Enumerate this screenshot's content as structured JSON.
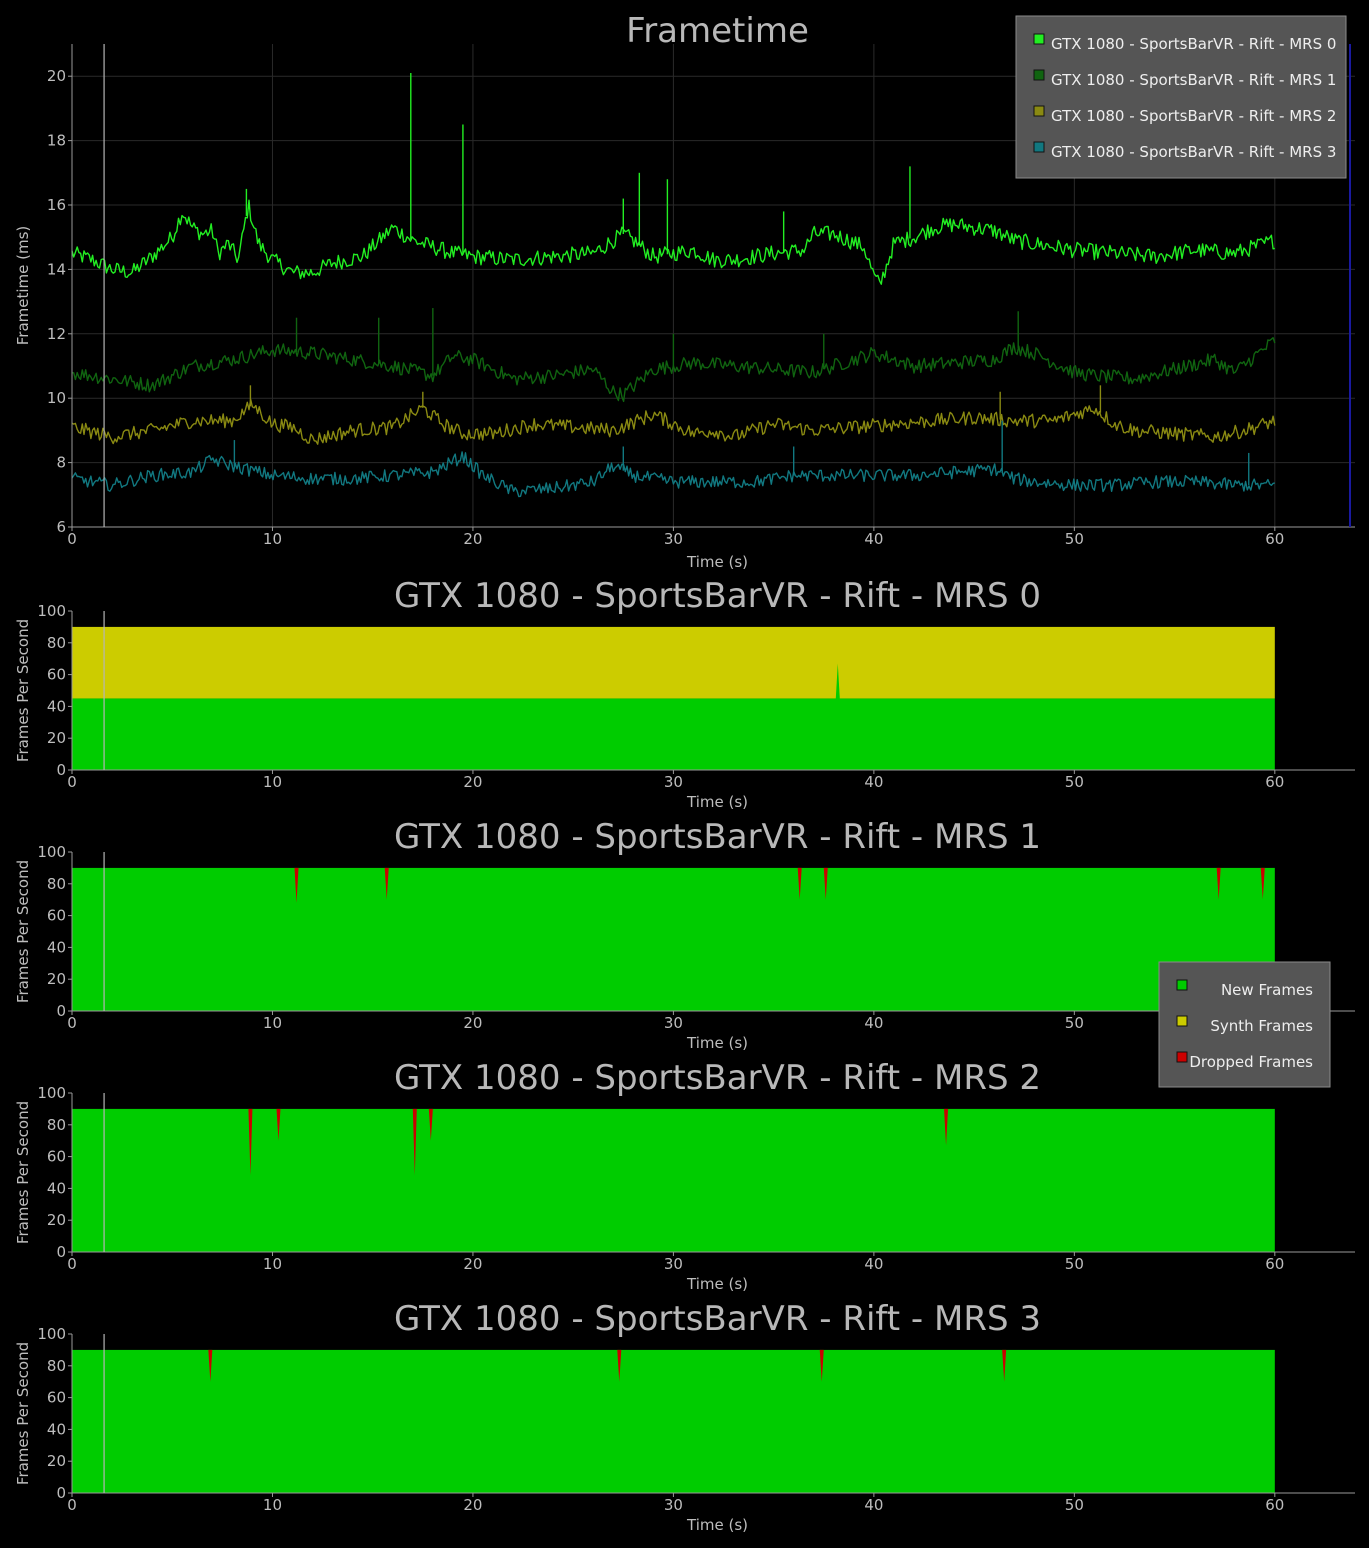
{
  "chart_data": [
    {
      "type": "line",
      "title": "Frametime",
      "xlabel": "Time (s)",
      "ylabel": "Frametime (ms)",
      "xlim": [
        0,
        64
      ],
      "ylim": [
        6,
        21
      ],
      "xticks": [
        0,
        10,
        20,
        30,
        40,
        50,
        60
      ],
      "yticks": [
        6,
        8,
        10,
        12,
        14,
        16,
        18,
        20
      ],
      "grid": true,
      "legend_position": "top-right",
      "cursor_x": 1.6,
      "series": [
        {
          "name": "GTX 1080 - SportsBarVR - Rift - MRS 0",
          "color": "#22ee22",
          "noise": 0.25,
          "x": [
            0,
            1,
            2,
            3,
            4,
            5,
            5.5,
            6,
            6.5,
            7,
            7.3,
            7.8,
            8.3,
            8.8,
            9.3,
            10,
            11,
            12,
            13,
            14.5,
            15.5,
            16,
            17,
            18,
            19,
            20,
            22,
            24,
            26,
            27.5,
            28,
            29,
            30,
            31,
            32,
            33,
            35,
            36.5,
            37,
            38,
            39.5,
            40,
            40.3,
            41,
            42,
            43,
            44,
            46,
            47,
            48,
            50,
            52,
            54,
            56,
            58,
            60
          ],
          "y": [
            14.5,
            14.3,
            14,
            13.9,
            14.4,
            15,
            15.8,
            15.3,
            15.1,
            15.2,
            14.5,
            14.8,
            14.3,
            16,
            14.8,
            14.3,
            13.9,
            13.9,
            14.2,
            14.4,
            15,
            15.3,
            14.9,
            14.7,
            14.5,
            14.4,
            14.3,
            14.4,
            14.5,
            15.1,
            14.9,
            14.4,
            14.5,
            14.6,
            14.3,
            14.3,
            14.5,
            14.6,
            15.1,
            15.1,
            14.7,
            13.8,
            13.5,
            14.8,
            15,
            15.3,
            15.4,
            15.2,
            14.9,
            14.8,
            14.6,
            14.5,
            14.4,
            14.6,
            14.5,
            14.9
          ],
          "spikes": [
            [
              16.9,
              20.1
            ],
            [
              19.5,
              18.5
            ],
            [
              8.7,
              16.5
            ],
            [
              28.3,
              17
            ],
            [
              29.7,
              16.8
            ],
            [
              41.8,
              17.2
            ],
            [
              27.5,
              16.2
            ],
            [
              35.5,
              15.8
            ]
          ]
        },
        {
          "name": "GTX 1080 - SportsBarVR - Rift - MRS 1",
          "color": "#106410",
          "noise": 0.22,
          "x": [
            0,
            2,
            4,
            6,
            8,
            10,
            12,
            14,
            16,
            18,
            19,
            20,
            22,
            24,
            26,
            27,
            27.5,
            29,
            31,
            33,
            35,
            37,
            39,
            40,
            42,
            44,
            46,
            47,
            48,
            50,
            51,
            53,
            55,
            57,
            58,
            59,
            60
          ],
          "y": [
            10.8,
            10.6,
            10.4,
            11,
            11.2,
            11.5,
            11.4,
            11.2,
            11,
            10.7,
            11.3,
            11.2,
            10.6,
            10.7,
            10.9,
            10.2,
            10.1,
            10.9,
            11.1,
            11,
            10.9,
            10.8,
            11.2,
            11.4,
            11,
            11.1,
            11.2,
            11.6,
            11.4,
            10.8,
            10.7,
            10.6,
            10.9,
            11.2,
            10.8,
            11.3,
            11.8
          ],
          "spikes": [
            [
              11.2,
              12.5
            ],
            [
              15.3,
              12.5
            ],
            [
              18,
              12.8
            ],
            [
              37.5,
              12
            ],
            [
              47.2,
              12.7
            ],
            [
              30,
              12
            ]
          ]
        },
        {
          "name": "GTX 1080 - SportsBarVR - Rift - MRS 2",
          "color": "#8a8a12",
          "noise": 0.22,
          "x": [
            0,
            2,
            4,
            6,
            8,
            9,
            10,
            11,
            12,
            14,
            16,
            17.5,
            18.5,
            19.5,
            21,
            23,
            25,
            27,
            29,
            30,
            31,
            32,
            33,
            35,
            37,
            39,
            41,
            43,
            45,
            47,
            49,
            51,
            52,
            53,
            55,
            57,
            58.5,
            60
          ],
          "y": [
            9.1,
            8.8,
            9,
            9.3,
            9.3,
            9.8,
            9.2,
            9.1,
            8.7,
            9,
            9.1,
            9.7,
            9.2,
            8.9,
            8.9,
            9.2,
            9.1,
            9,
            9.5,
            9.2,
            8.9,
            9,
            8.8,
            9.2,
            9,
            9.1,
            9.2,
            9.3,
            9.4,
            9.3,
            9.3,
            9.7,
            9.2,
            9,
            8.9,
            8.8,
            9,
            9.3
          ],
          "spikes": [
            [
              8.9,
              10.4
            ],
            [
              17.5,
              10.2
            ],
            [
              46.3,
              10.2
            ],
            [
              51.3,
              10.4
            ]
          ]
        },
        {
          "name": "GTX 1080 - SportsBarVR - Rift - MRS 3",
          "color": "#117880",
          "noise": 0.2,
          "x": [
            0,
            2,
            4,
            6,
            7,
            8,
            10,
            12,
            14,
            16,
            18,
            19.5,
            20.5,
            22,
            24,
            26,
            27,
            28,
            30,
            32,
            34,
            36,
            38,
            40,
            42,
            44,
            46,
            47,
            48,
            50,
            52,
            54,
            56,
            58,
            60
          ],
          "y": [
            7.5,
            7.3,
            7.6,
            7.7,
            8.1,
            7.9,
            7.6,
            7.5,
            7.5,
            7.6,
            7.7,
            8.2,
            7.6,
            7.1,
            7.2,
            7.4,
            7.9,
            7.6,
            7.4,
            7.4,
            7.4,
            7.6,
            7.6,
            7.6,
            7.6,
            7.7,
            7.8,
            7.5,
            7.4,
            7.3,
            7.3,
            7.4,
            7.4,
            7.3,
            7.3
          ],
          "spikes": [
            [
              8.1,
              8.7
            ],
            [
              46.4,
              9.3
            ],
            [
              27.5,
              8.5
            ],
            [
              36,
              8.5
            ],
            [
              58.7,
              8.3
            ]
          ]
        }
      ]
    },
    {
      "type": "area",
      "title": "GTX 1080 - SportsBarVR - Rift - MRS 0",
      "xlabel": "Time (s)",
      "ylabel": "Frames Per Second",
      "xlim": [
        0,
        64
      ],
      "ylim": [
        0,
        100
      ],
      "xticks": [
        0,
        10,
        20,
        30,
        40,
        50,
        60
      ],
      "yticks": [
        0,
        20,
        40,
        60,
        80,
        100
      ],
      "cursor_x": 1.6,
      "end_x": 60,
      "series": [
        {
          "name": "New Frames",
          "color": "#00cc00",
          "value": 45
        },
        {
          "name": "Synth Frames",
          "color": "#cccc00",
          "value": 45
        },
        {
          "name": "Dropped Frames",
          "color": "#cc0000",
          "value": 0
        }
      ],
      "new_frame_spikes": [
        [
          38.2,
          67
        ]
      ],
      "dropped_dips": []
    },
    {
      "type": "area",
      "title": "GTX 1080 - SportsBarVR - Rift - MRS 1",
      "xlabel": "Time (s)",
      "ylabel": "Frames Per Second",
      "xlim": [
        0,
        64
      ],
      "ylim": [
        0,
        100
      ],
      "xticks": [
        0,
        10,
        20,
        30,
        40,
        50,
        60
      ],
      "yticks": [
        0,
        20,
        40,
        60,
        80,
        100
      ],
      "cursor_x": 1.6,
      "end_x": 60,
      "series": [
        {
          "name": "New Frames",
          "color": "#00cc00",
          "value": 90
        },
        {
          "name": "Synth Frames",
          "color": "#cccc00",
          "value": 0
        },
        {
          "name": "Dropped Frames",
          "color": "#cc0000",
          "value": 0
        }
      ],
      "dropped_dips": [
        [
          11.2,
          68
        ],
        [
          15.7,
          70
        ],
        [
          36.3,
          70
        ],
        [
          37.6,
          70
        ],
        [
          57.2,
          70
        ],
        [
          59.4,
          70
        ]
      ],
      "legend_position": "right"
    },
    {
      "type": "area",
      "title": "GTX 1080 - SportsBarVR - Rift - MRS 2",
      "xlabel": "Time (s)",
      "ylabel": "Frames Per Second",
      "xlim": [
        0,
        64
      ],
      "ylim": [
        0,
        100
      ],
      "xticks": [
        0,
        10,
        20,
        30,
        40,
        50,
        60
      ],
      "yticks": [
        0,
        20,
        40,
        60,
        80,
        100
      ],
      "cursor_x": 1.6,
      "end_x": 60,
      "series": [
        {
          "name": "New Frames",
          "color": "#00cc00",
          "value": 90
        },
        {
          "name": "Synth Frames",
          "color": "#cccc00",
          "value": 0
        },
        {
          "name": "Dropped Frames",
          "color": "#cc0000",
          "value": 0
        }
      ],
      "dropped_dips": [
        [
          8.9,
          48
        ],
        [
          10.3,
          70
        ],
        [
          17.1,
          48
        ],
        [
          17.9,
          70
        ],
        [
          43.6,
          67
        ]
      ]
    },
    {
      "type": "area",
      "title": "GTX 1080 - SportsBarVR - Rift - MRS 3",
      "xlabel": "Time (s)",
      "ylabel": "Frames Per Second",
      "xlim": [
        0,
        64
      ],
      "ylim": [
        0,
        100
      ],
      "xticks": [
        0,
        10,
        20,
        30,
        40,
        50,
        60
      ],
      "yticks": [
        0,
        20,
        40,
        60,
        80,
        100
      ],
      "cursor_x": 1.6,
      "end_x": 60,
      "series": [
        {
          "name": "New Frames",
          "color": "#00cc00",
          "value": 90
        },
        {
          "name": "Synth Frames",
          "color": "#cccc00",
          "value": 0
        },
        {
          "name": "Dropped Frames",
          "color": "#cc0000",
          "value": 0
        }
      ],
      "dropped_dips": [
        [
          6.9,
          70
        ],
        [
          27.3,
          70
        ],
        [
          37.4,
          70
        ],
        [
          46.5,
          70
        ]
      ]
    }
  ],
  "fps_legend": {
    "items": [
      {
        "label": "New Frames",
        "color": "#00cc00"
      },
      {
        "label": "Synth Frames",
        "color": "#cccc00"
      },
      {
        "label": "Dropped Frames",
        "color": "#cc0000"
      }
    ]
  },
  "colors": {
    "background": "#000000",
    "axis": "#9a9a9a",
    "grid": "#2a2a2a",
    "legend_bg": "#555555",
    "cursor": "#b5b5b5"
  }
}
